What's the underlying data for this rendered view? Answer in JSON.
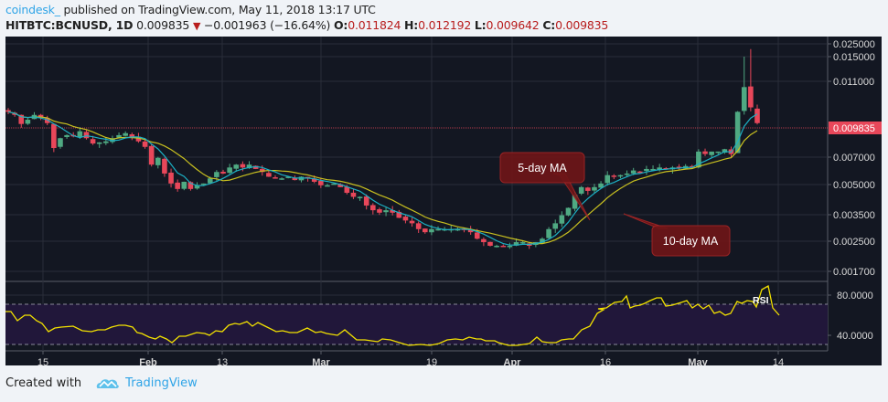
{
  "header": {
    "author": "coindesk_",
    "published": " published on TradingView.com, May 11, 2018 13:17 UTC",
    "symbol": "HITBTC:BCNUSD, 1D",
    "last": "0.009835",
    "down_arrow": "▼",
    "change": "−0.001963 (−16.64%)",
    "o_label": "O:",
    "o": "0.011824",
    "h_label": "H:",
    "h": "0.012192",
    "l_label": "L:",
    "l": "0.009642",
    "c_label": "C:",
    "c": "0.009835"
  },
  "footer": {
    "created_with": "Created with",
    "brand": "TradingView"
  },
  "annotations": {
    "ma5": "5-day MA",
    "ma10": "10-day MA",
    "rsi": "RSI"
  },
  "colors": {
    "up": "#4fa982",
    "down": "#e8475a",
    "ma5": "#1cb0c4",
    "ma10": "#c8c020",
    "rsi": "#f2e100",
    "bg": "#131722",
    "price_line": "#e8475a"
  },
  "chart_data": {
    "type": "candlestick",
    "title": "HITBTC:BCNUSD, 1D",
    "price_axis": {
      "scale": "log",
      "ticks": [
        "0.025000",
        "0.015000",
        "0.011000",
        "0.007000",
        "0.005000",
        "0.003500",
        "0.002500",
        "0.001700"
      ],
      "current": "0.009835"
    },
    "rsi_axis": {
      "ticks": [
        "80.0000",
        "40.0000"
      ],
      "band": [
        30,
        70
      ]
    },
    "x_ticks": [
      "15",
      "Feb",
      "13",
      "Mar",
      "19",
      "Apr",
      "16",
      "May",
      "14"
    ],
    "series": [
      {
        "name": "5-day MA",
        "color": "#1cb0c4"
      },
      {
        "name": "10-day MA",
        "color": "#c8c020"
      },
      {
        "name": "RSI",
        "color": "#f2e100"
      }
    ],
    "last_candle": {
      "open": 0.011824,
      "high": 0.012192,
      "low": 0.009642,
      "close": 0.009835
    },
    "approx_close_path": [
      0.0112,
      0.0108,
      0.0097,
      0.0102,
      0.0108,
      0.0105,
      0.0098,
      0.0073,
      0.0082,
      0.0085,
      0.0084,
      0.0089,
      0.0082,
      0.0077,
      0.0078,
      0.0079,
      0.0082,
      0.0085,
      0.0087,
      0.0083,
      0.0079,
      0.0074,
      0.006,
      0.0065,
      0.0054,
      0.0048,
      0.0045,
      0.0049,
      0.0045,
      0.0047,
      0.0048,
      0.0051,
      0.0055,
      0.0054,
      0.0058,
      0.006,
      0.0058,
      0.006,
      0.0057,
      0.0055,
      0.0052,
      0.0051,
      0.0051,
      0.0052,
      0.005,
      0.0052,
      0.0051,
      0.0049,
      0.0047,
      0.0047,
      0.0048,
      0.0046,
      0.0043,
      0.0041,
      0.0041,
      0.0037,
      0.0035,
      0.0034,
      0.0035,
      0.0034,
      0.0032,
      0.0031,
      0.003,
      0.0028,
      0.0027,
      0.0028,
      0.0028,
      0.0028,
      0.0028,
      0.0028,
      0.0028,
      0.0027,
      0.0025,
      0.0024,
      0.0023,
      0.0023,
      0.0023,
      0.0023,
      0.0024,
      0.0024,
      0.0023,
      0.0024,
      0.0025,
      0.0028,
      0.003,
      0.0033,
      0.0036,
      0.0042,
      0.0046,
      0.0044,
      0.0046,
      0.0048,
      0.0053,
      0.0052,
      0.0053,
      0.0054,
      0.0056,
      0.0055,
      0.0057,
      0.0057,
      0.0058,
      0.0057,
      0.0058,
      0.0058,
      0.0059,
      0.0058,
      0.007,
      0.0068,
      0.007,
      0.007,
      0.0072,
      0.0068,
      0.0112,
      0.015,
      0.0118,
      0.0098
    ]
  }
}
